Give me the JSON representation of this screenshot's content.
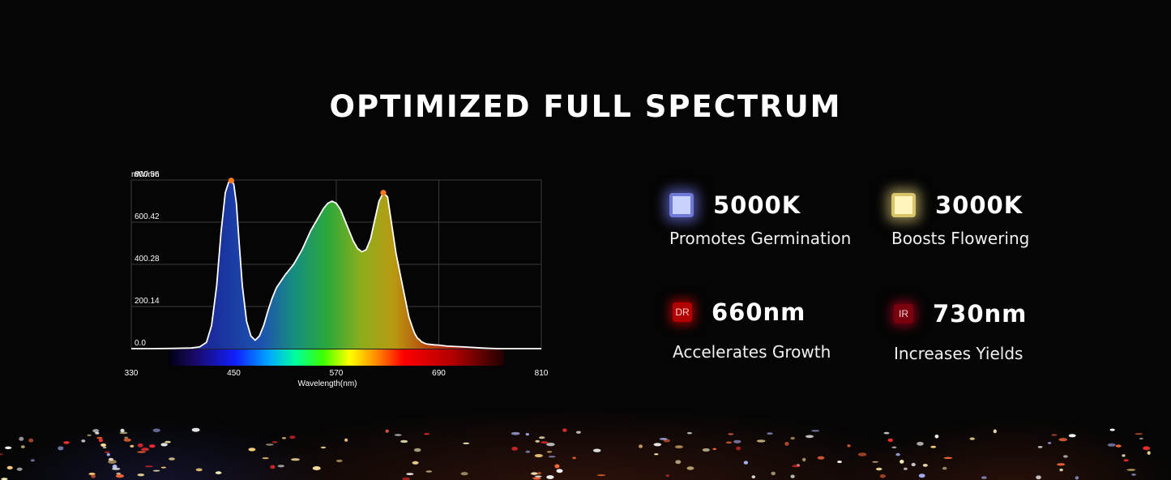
{
  "title": "OPTIMIZED FULL SPECTRUM",
  "chart_data": {
    "type": "line",
    "ylabel": "mW/nm",
    "xlabel": "Wavelength(nm)",
    "xlim": [
      330,
      810
    ],
    "ylim": [
      0,
      800.56
    ],
    "x_ticks": [
      330,
      450,
      570,
      690,
      810
    ],
    "y_ticks": [
      0.0,
      200.14,
      400.28,
      600.42,
      800.56
    ],
    "y_tick_labels": [
      "0.0",
      "200.14",
      "400.28",
      "600.42",
      "800.56"
    ],
    "grid": true,
    "series": [
      {
        "x": [
          330,
          355,
          380,
          400,
          410,
          418,
          424,
          430,
          435,
          440,
          444,
          447,
          450,
          453,
          456,
          460,
          465,
          470,
          475,
          480,
          485,
          490,
          495,
          500,
          510,
          520,
          530,
          540,
          550,
          555,
          560,
          565,
          570,
          575,
          580,
          585,
          590,
          595,
          600,
          605,
          610,
          615,
          620,
          625,
          630,
          640,
          650,
          655,
          660,
          662,
          665,
          668,
          670,
          673,
          676,
          680,
          685,
          690,
          700,
          720,
          740,
          750,
          760,
          770,
          790,
          810
        ],
        "y": [
          0,
          0,
          1,
          3,
          8,
          30,
          110,
          300,
          550,
          740,
          790,
          798,
          780,
          690,
          520,
          300,
          130,
          60,
          40,
          60,
          110,
          180,
          240,
          290,
          350,
          400,
          470,
          560,
          630,
          665,
          690,
          700,
          690,
          660,
          610,
          560,
          510,
          475,
          460,
          470,
          520,
          610,
          700,
          740,
          720,
          450,
          250,
          150,
          90,
          70,
          50,
          40,
          32,
          26,
          22,
          20,
          18,
          17,
          12,
          8,
          3,
          1,
          0,
          0,
          0,
          0
        ]
      }
    ],
    "peaks": [
      {
        "x": 447,
        "y": 798
      },
      {
        "x": 625,
        "y": 740
      }
    ]
  },
  "features": [
    {
      "value": "5000K",
      "description": "Promotes Germination",
      "chip_label": ""
    },
    {
      "value": "3000K",
      "description": "Boosts Flowering",
      "chip_label": ""
    },
    {
      "value": "660nm",
      "description": "Accelerates Growth",
      "chip_label": "DR"
    },
    {
      "value": "730nm",
      "description": "Increases Yields",
      "chip_label": "IR"
    }
  ],
  "colors": {
    "background": "#050505",
    "peak_marker": "#ff7a1a",
    "curve": "#ffffff"
  }
}
